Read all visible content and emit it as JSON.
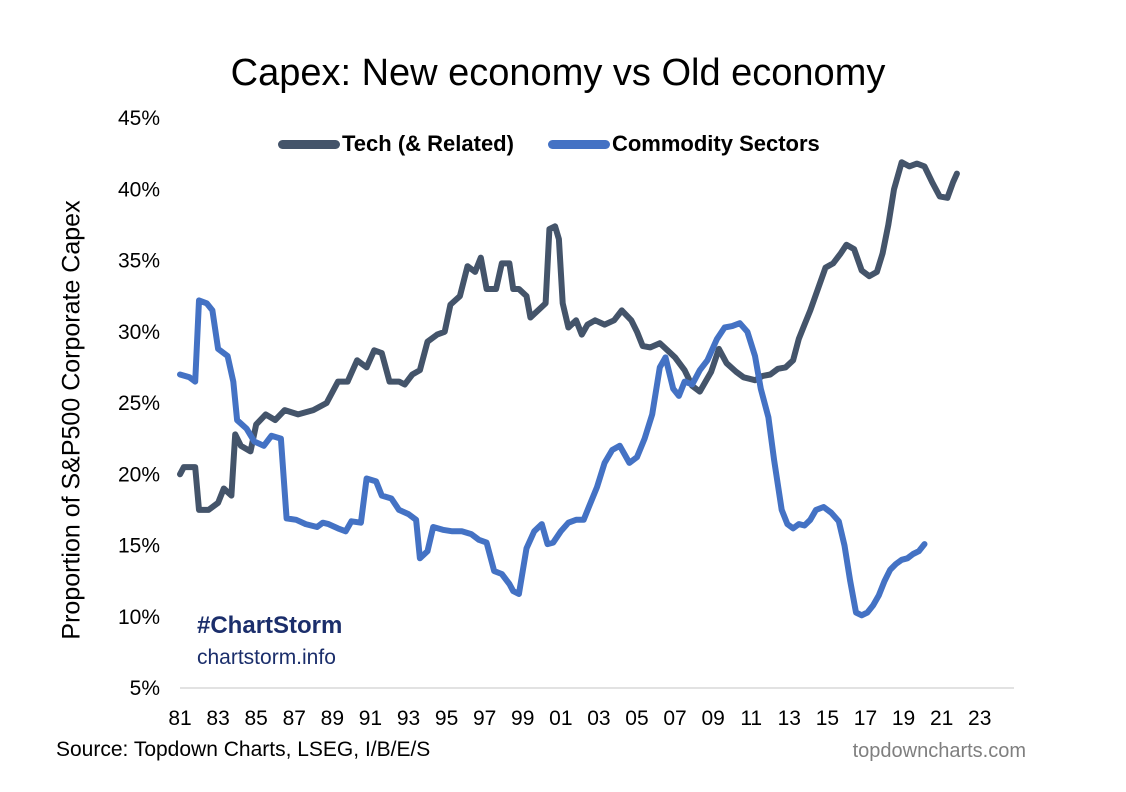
{
  "chart_data": {
    "type": "line",
    "title": "Capex: New economy vs Old economy",
    "xlabel": "",
    "ylabel": "Proportion of S&P500 Corporate Capex",
    "xlim": [
      1981,
      2024.8
    ],
    "ylim": [
      5,
      45
    ],
    "y_ticks": [
      5,
      10,
      15,
      20,
      25,
      30,
      35,
      40,
      45
    ],
    "y_tick_labels": [
      "5%",
      "10%",
      "15%",
      "20%",
      "25%",
      "30%",
      "35%",
      "40%",
      "45%"
    ],
    "x_ticks": [
      1981,
      1983,
      1985,
      1987,
      1989,
      1991,
      1993,
      1995,
      1997,
      1999,
      2001,
      2003,
      2005,
      2007,
      2009,
      2011,
      2013,
      2015,
      2017,
      2019,
      2021,
      2023
    ],
    "x_tick_labels": [
      "81",
      "83",
      "85",
      "87",
      "89",
      "91",
      "93",
      "95",
      "97",
      "99",
      "01",
      "03",
      "05",
      "07",
      "09",
      "11",
      "13",
      "15",
      "17",
      "19",
      "21",
      "23"
    ],
    "grid": false,
    "legend": "top-center",
    "series": [
      {
        "name": "Tech (& Related)",
        "color": "#44546a",
        "points": [
          [
            1981.0,
            20.0
          ],
          [
            1981.2,
            20.5
          ],
          [
            1981.5,
            20.5
          ],
          [
            1981.8,
            20.5
          ],
          [
            1982.0,
            17.5
          ],
          [
            1982.5,
            17.5
          ],
          [
            1983.0,
            18.0
          ],
          [
            1983.3,
            19.0
          ],
          [
            1983.7,
            18.5
          ],
          [
            1983.9,
            22.8
          ],
          [
            1984.2,
            22.0
          ],
          [
            1984.7,
            21.6
          ],
          [
            1985.0,
            23.5
          ],
          [
            1985.5,
            24.2
          ],
          [
            1986.0,
            23.8
          ],
          [
            1986.5,
            24.5
          ],
          [
            1987.2,
            24.2
          ],
          [
            1988.0,
            24.5
          ],
          [
            1988.7,
            25.0
          ],
          [
            1989.3,
            26.5
          ],
          [
            1989.8,
            26.5
          ],
          [
            1990.3,
            28.0
          ],
          [
            1990.8,
            27.5
          ],
          [
            1991.2,
            28.7
          ],
          [
            1991.6,
            28.5
          ],
          [
            1992.0,
            26.5
          ],
          [
            1992.5,
            26.5
          ],
          [
            1992.8,
            26.3
          ],
          [
            1993.2,
            27.0
          ],
          [
            1993.6,
            27.3
          ],
          [
            1994.0,
            29.3
          ],
          [
            1994.5,
            29.8
          ],
          [
            1994.9,
            30.0
          ],
          [
            1995.2,
            31.9
          ],
          [
            1995.7,
            32.5
          ],
          [
            1996.1,
            34.6
          ],
          [
            1996.5,
            34.2
          ],
          [
            1996.8,
            35.2
          ],
          [
            1997.1,
            33.0
          ],
          [
            1997.6,
            33.0
          ],
          [
            1997.9,
            34.8
          ],
          [
            1998.3,
            34.8
          ],
          [
            1998.5,
            33.0
          ],
          [
            1998.8,
            33.0
          ],
          [
            1999.2,
            32.5
          ],
          [
            1999.4,
            31.0
          ],
          [
            1999.8,
            31.5
          ],
          [
            2000.2,
            32.0
          ],
          [
            2000.4,
            37.2
          ],
          [
            2000.7,
            37.4
          ],
          [
            2000.9,
            36.5
          ],
          [
            2001.1,
            32.0
          ],
          [
            2001.4,
            30.3
          ],
          [
            2001.8,
            30.8
          ],
          [
            2002.1,
            29.8
          ],
          [
            2002.4,
            30.5
          ],
          [
            2002.8,
            30.8
          ],
          [
            2003.3,
            30.5
          ],
          [
            2003.8,
            30.8
          ],
          [
            2004.2,
            31.5
          ],
          [
            2004.7,
            30.8
          ],
          [
            2005.0,
            30.0
          ],
          [
            2005.3,
            29.0
          ],
          [
            2005.7,
            28.9
          ],
          [
            2006.2,
            29.2
          ],
          [
            2006.6,
            28.7
          ],
          [
            2007.0,
            28.2
          ],
          [
            2007.5,
            27.3
          ],
          [
            2007.9,
            26.2
          ],
          [
            2008.3,
            25.8
          ],
          [
            2008.6,
            26.5
          ],
          [
            2008.9,
            27.2
          ],
          [
            2009.3,
            28.8
          ],
          [
            2009.7,
            27.8
          ],
          [
            2010.2,
            27.2
          ],
          [
            2010.6,
            26.8
          ],
          [
            2011.2,
            26.6
          ],
          [
            2011.6,
            26.9
          ],
          [
            2012.0,
            27.0
          ],
          [
            2012.4,
            27.4
          ],
          [
            2012.8,
            27.5
          ],
          [
            2013.2,
            28.0
          ],
          [
            2013.5,
            29.5
          ],
          [
            2013.8,
            30.5
          ],
          [
            2014.1,
            31.5
          ],
          [
            2014.5,
            33.0
          ],
          [
            2014.9,
            34.5
          ],
          [
            2015.3,
            34.8
          ],
          [
            2015.7,
            35.5
          ],
          [
            2016.0,
            36.1
          ],
          [
            2016.4,
            35.8
          ],
          [
            2016.8,
            34.3
          ],
          [
            2017.2,
            33.9
          ],
          [
            2017.6,
            34.2
          ],
          [
            2017.9,
            35.5
          ],
          [
            2018.2,
            37.5
          ],
          [
            2018.5,
            40.0
          ],
          [
            2018.9,
            41.9
          ],
          [
            2019.3,
            41.6
          ],
          [
            2019.7,
            41.8
          ],
          [
            2020.1,
            41.6
          ],
          [
            2020.5,
            40.5
          ],
          [
            2020.9,
            39.5
          ],
          [
            2021.3,
            39.4
          ],
          [
            2021.6,
            40.5
          ],
          [
            2021.8,
            41.1
          ]
        ]
      },
      {
        "name": "Commodity Sectors",
        "color": "#4472c4",
        "points": [
          [
            1981.0,
            27.0
          ],
          [
            1981.5,
            26.8
          ],
          [
            1981.8,
            26.5
          ],
          [
            1982.0,
            32.2
          ],
          [
            1982.4,
            32.0
          ],
          [
            1982.7,
            31.5
          ],
          [
            1983.0,
            28.8
          ],
          [
            1983.5,
            28.3
          ],
          [
            1983.8,
            26.5
          ],
          [
            1984.0,
            23.8
          ],
          [
            1984.5,
            23.2
          ],
          [
            1984.9,
            22.3
          ],
          [
            1985.4,
            22.0
          ],
          [
            1985.8,
            22.7
          ],
          [
            1986.3,
            22.5
          ],
          [
            1986.6,
            16.9
          ],
          [
            1987.1,
            16.8
          ],
          [
            1987.6,
            16.5
          ],
          [
            1988.2,
            16.3
          ],
          [
            1988.5,
            16.6
          ],
          [
            1988.8,
            16.5
          ],
          [
            1989.3,
            16.2
          ],
          [
            1989.7,
            16.0
          ],
          [
            1990.0,
            16.7
          ],
          [
            1990.5,
            16.6
          ],
          [
            1990.8,
            19.7
          ],
          [
            1991.3,
            19.5
          ],
          [
            1991.6,
            18.5
          ],
          [
            1992.1,
            18.3
          ],
          [
            1992.5,
            17.5
          ],
          [
            1993.0,
            17.2
          ],
          [
            1993.4,
            16.8
          ],
          [
            1993.6,
            14.1
          ],
          [
            1994.0,
            14.6
          ],
          [
            1994.3,
            16.3
          ],
          [
            1994.8,
            16.1
          ],
          [
            1995.3,
            16.0
          ],
          [
            1995.8,
            16.0
          ],
          [
            1996.3,
            15.8
          ],
          [
            1996.7,
            15.4
          ],
          [
            1997.1,
            15.2
          ],
          [
            1997.5,
            13.2
          ],
          [
            1997.9,
            13.0
          ],
          [
            1998.3,
            12.3
          ],
          [
            1998.5,
            11.8
          ],
          [
            1998.8,
            11.6
          ],
          [
            1999.2,
            14.8
          ],
          [
            1999.6,
            16.0
          ],
          [
            2000.0,
            16.5
          ],
          [
            2000.3,
            15.1
          ],
          [
            2000.6,
            15.2
          ],
          [
            2001.0,
            16.0
          ],
          [
            2001.4,
            16.6
          ],
          [
            2001.8,
            16.8
          ],
          [
            2002.2,
            16.8
          ],
          [
            2002.5,
            17.8
          ],
          [
            2002.9,
            19.1
          ],
          [
            2003.3,
            20.8
          ],
          [
            2003.7,
            21.7
          ],
          [
            2004.1,
            22.0
          ],
          [
            2004.6,
            20.8
          ],
          [
            2005.0,
            21.2
          ],
          [
            2005.4,
            22.5
          ],
          [
            2005.8,
            24.2
          ],
          [
            2006.2,
            27.5
          ],
          [
            2006.5,
            28.2
          ],
          [
            2006.9,
            26.0
          ],
          [
            2007.2,
            25.5
          ],
          [
            2007.5,
            26.5
          ],
          [
            2007.9,
            26.3
          ],
          [
            2008.3,
            27.3
          ],
          [
            2008.7,
            28.0
          ],
          [
            2009.2,
            29.5
          ],
          [
            2009.6,
            30.3
          ],
          [
            2010.0,
            30.4
          ],
          [
            2010.4,
            30.6
          ],
          [
            2010.8,
            30.0
          ],
          [
            2011.2,
            28.3
          ],
          [
            2011.5,
            26.0
          ],
          [
            2011.9,
            24.0
          ],
          [
            2012.2,
            21.0
          ],
          [
            2012.6,
            17.5
          ],
          [
            2012.9,
            16.5
          ],
          [
            2013.2,
            16.2
          ],
          [
            2013.5,
            16.5
          ],
          [
            2013.8,
            16.4
          ],
          [
            2014.1,
            16.8
          ],
          [
            2014.4,
            17.5
          ],
          [
            2014.8,
            17.7
          ],
          [
            2015.2,
            17.3
          ],
          [
            2015.6,
            16.7
          ],
          [
            2015.9,
            15.0
          ],
          [
            2016.2,
            12.5
          ],
          [
            2016.5,
            10.3
          ],
          [
            2016.8,
            10.1
          ],
          [
            2017.1,
            10.3
          ],
          [
            2017.4,
            10.8
          ],
          [
            2017.7,
            11.5
          ],
          [
            2018.0,
            12.5
          ],
          [
            2018.3,
            13.3
          ],
          [
            2018.6,
            13.7
          ],
          [
            2018.9,
            14.0
          ],
          [
            2019.2,
            14.1
          ],
          [
            2019.5,
            14.4
          ],
          [
            2019.8,
            14.6
          ],
          [
            2020.1,
            15.1
          ]
        ]
      }
    ]
  },
  "branding": {
    "tag": "#ChartStorm",
    "site": "chartstorm.info"
  },
  "footer": {
    "source": "Source: Topdown Charts, LSEG, I/B/E/S",
    "credit": "topdowncharts.com"
  }
}
